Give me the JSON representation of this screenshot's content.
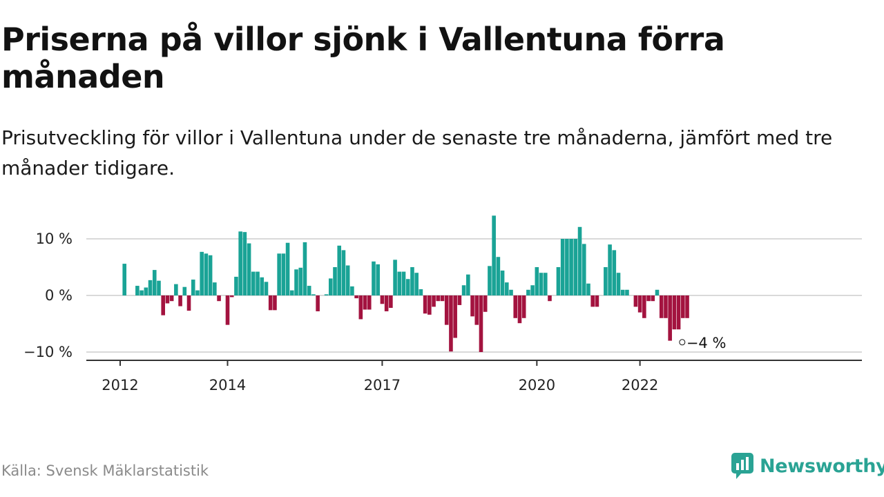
{
  "title": "Priserna på villor sjönk i Vallentuna förra månaden",
  "subtitle": "Prisutveckling för villor i Vallentuna under de senaste tre månaderna, jämfört med tre månader tidigare.",
  "source": "Källa: Svensk Mäklarstatistik",
  "brand": {
    "name": "Newsworthy",
    "color": "#2aa394"
  },
  "colors": {
    "positive": "#1aa396",
    "negative": "#a3133f",
    "grid": "#d9d9d9",
    "axis": "#333333"
  },
  "chart_data": {
    "type": "bar",
    "title": "Priserna på villor sjönk i Vallentuna förra månaden",
    "subtitle": "Prisutveckling för villor i Vallentuna under de senaste tre månaderna, jämfört med tre månader tidigare.",
    "xlabel": "",
    "ylabel": "",
    "ylim": [
      -10.5,
      14.5
    ],
    "y_ticks": [
      10,
      0,
      -10
    ],
    "y_tick_labels": [
      "10 %",
      "0 %",
      "−10 %"
    ],
    "x_ticks": [
      {
        "label": "2012",
        "index": 0
      },
      {
        "label": "2014",
        "index": 25
      },
      {
        "label": "2017",
        "index": 61
      },
      {
        "label": "2020",
        "index": 97
      },
      {
        "label": "2022",
        "index": 121
      }
    ],
    "annotation": {
      "label": "−4 %",
      "index": 131,
      "value": -4
    },
    "grid": true,
    "legend": "none",
    "values": [
      0,
      5.6,
      0,
      0,
      1.7,
      0.9,
      1.4,
      2.7,
      4.5,
      2.6,
      -3.5,
      -1.4,
      -1.0,
      2.0,
      -1.9,
      1.5,
      -2.7,
      2.8,
      0.9,
      7.7,
      7.4,
      7.1,
      2.3,
      -1.0,
      0,
      -5.2,
      -0.3,
      3.3,
      11.3,
      11.2,
      9.2,
      4.2,
      4.2,
      3.2,
      2.4,
      -2.6,
      -2.6,
      7.4,
      7.4,
      9.3,
      0.9,
      4.6,
      4.9,
      9.4,
      1.7,
      0.2,
      -2.8,
      0,
      0.2,
      3.0,
      5.0,
      8.8,
      8.0,
      5.3,
      1.6,
      -0.5,
      -4.2,
      -2.5,
      -2.5,
      6.0,
      5.5,
      -1.5,
      -2.8,
      -2.2,
      6.3,
      4.2,
      4.2,
      2.9,
      5.0,
      4.0,
      1.1,
      -3.2,
      -3.4,
      -2.0,
      -1.0,
      -1.0,
      -5.2,
      -9.9,
      -7.5,
      -1.7,
      1.8,
      3.7,
      -3.7,
      -5.2,
      -10.0,
      -2.9,
      5.2,
      14.1,
      6.8,
      4.4,
      2.3,
      1.0,
      -4.0,
      -4.9,
      -4.0,
      1.0,
      1.8,
      5.0,
      4.0,
      4.0,
      -1.0,
      0,
      5.0,
      10.0,
      10.0,
      10.0,
      10.0,
      12.1,
      9.1,
      2.1,
      -2.0,
      -2.0,
      0,
      5.0,
      9.0,
      8.0,
      4.0,
      1.0,
      1.0,
      0,
      -2.0,
      -3.0,
      -4.0,
      -1.0,
      -1.0,
      1.0,
      -4.0,
      -4.0,
      -8.0,
      -6.0,
      -6.0,
      -4.0,
      -4.0
    ]
  }
}
